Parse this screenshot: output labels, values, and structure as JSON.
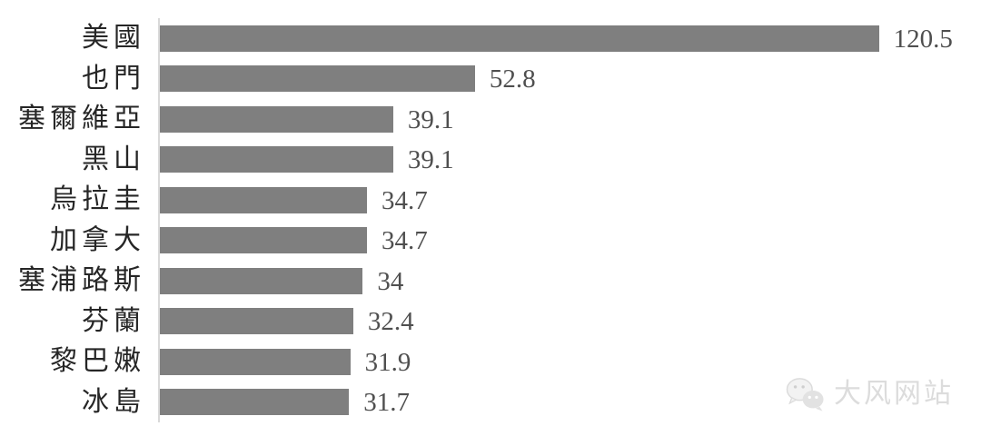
{
  "chart_data": {
    "type": "bar",
    "orientation": "horizontal",
    "title": "",
    "xlabel": "",
    "ylabel": "",
    "categories": [
      "美國",
      "也門",
      "塞爾維亞",
      "黑山",
      "烏拉圭",
      "加拿大",
      "塞浦路斯",
      "芬蘭",
      "黎巴嫩",
      "冰島"
    ],
    "values": [
      120.5,
      52.8,
      39.1,
      39.1,
      34.7,
      34.7,
      34,
      32.4,
      31.9,
      31.7
    ],
    "data_labels": [
      "120.5",
      "52.8",
      "39.1",
      "39.1",
      "34.7",
      "34.7",
      "34",
      "32.4",
      "31.9",
      "31.7"
    ],
    "xlim": [
      0,
      137
    ],
    "grid": false,
    "legend": false,
    "data_labels_visible": true,
    "bar_color": "#7f7f7f",
    "axis_line_color": "#d9d9d9",
    "category_label_color": "#262626",
    "value_label_color": "#4f4f4f"
  },
  "watermark": {
    "text": "大风网站",
    "icon": "wechat-icon",
    "color": "#dcdcdc"
  }
}
